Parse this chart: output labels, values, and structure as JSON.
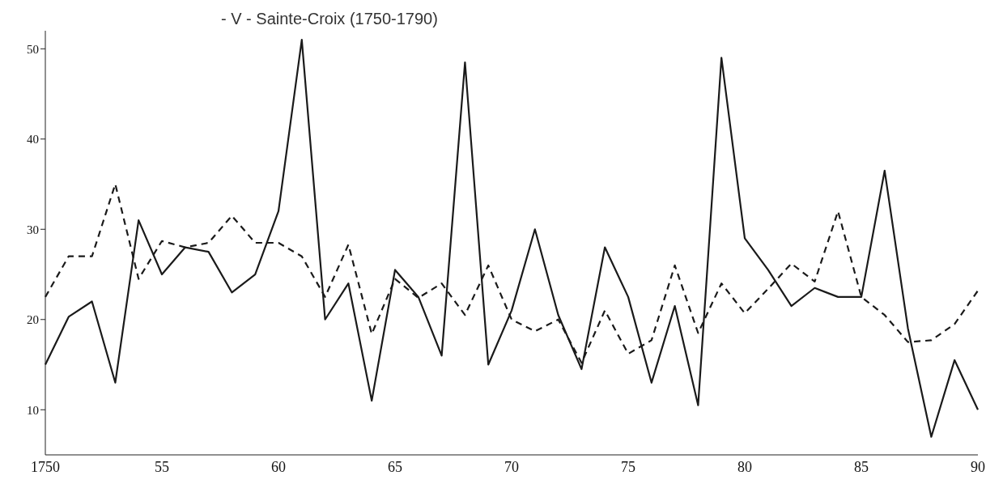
{
  "chart_data": {
    "type": "line",
    "title": "- V -   Sainte-Croix   (1750-1790)",
    "categories": [
      "1750",
      null,
      null,
      null,
      null,
      "55",
      null,
      null,
      null,
      null,
      "60",
      null,
      null,
      null,
      null,
      "65",
      null,
      null,
      null,
      null,
      "70",
      null,
      null,
      null,
      null,
      "75",
      null,
      null,
      null,
      null,
      "80",
      null,
      null,
      null,
      null,
      "85",
      null,
      null,
      null,
      null,
      "90"
    ],
    "series": [
      {
        "color": "#1a1a1a",
        "line_style": "solid",
        "values": [
          15,
          20.3,
          22,
          13,
          31,
          25,
          28,
          27.5,
          23,
          25,
          32,
          51,
          20,
          24,
          11,
          25.5,
          22.5,
          16,
          48.5,
          15,
          21,
          30,
          20.5,
          14.5,
          28,
          22.5,
          13,
          21.5,
          10.5,
          49,
          29,
          25.5,
          21.5,
          23.5,
          22.5,
          22.5,
          36.5,
          19,
          7,
          15.5,
          10
        ]
      },
      {
        "color": "#1a1a1a",
        "line_style": "dashed",
        "values": [
          22.5,
          27,
          27,
          35,
          24.5,
          28.7,
          28,
          28.5,
          31.5,
          28.5,
          28.5,
          27,
          22.5,
          28.3,
          18.4,
          24.5,
          22.4,
          24,
          20.5,
          26,
          20,
          18.7,
          20,
          15.2,
          21,
          16.2,
          17.7,
          26,
          18.5,
          24,
          20.7,
          23.4,
          26.2,
          24.2,
          32,
          22.5,
          20.5,
          17.5,
          17.7,
          19.5,
          23.2
        ]
      }
    ],
    "ylim": [
      5,
      52
    ],
    "yticks": [
      10,
      20,
      30,
      40,
      50
    ],
    "grid": false,
    "marker": "none"
  }
}
